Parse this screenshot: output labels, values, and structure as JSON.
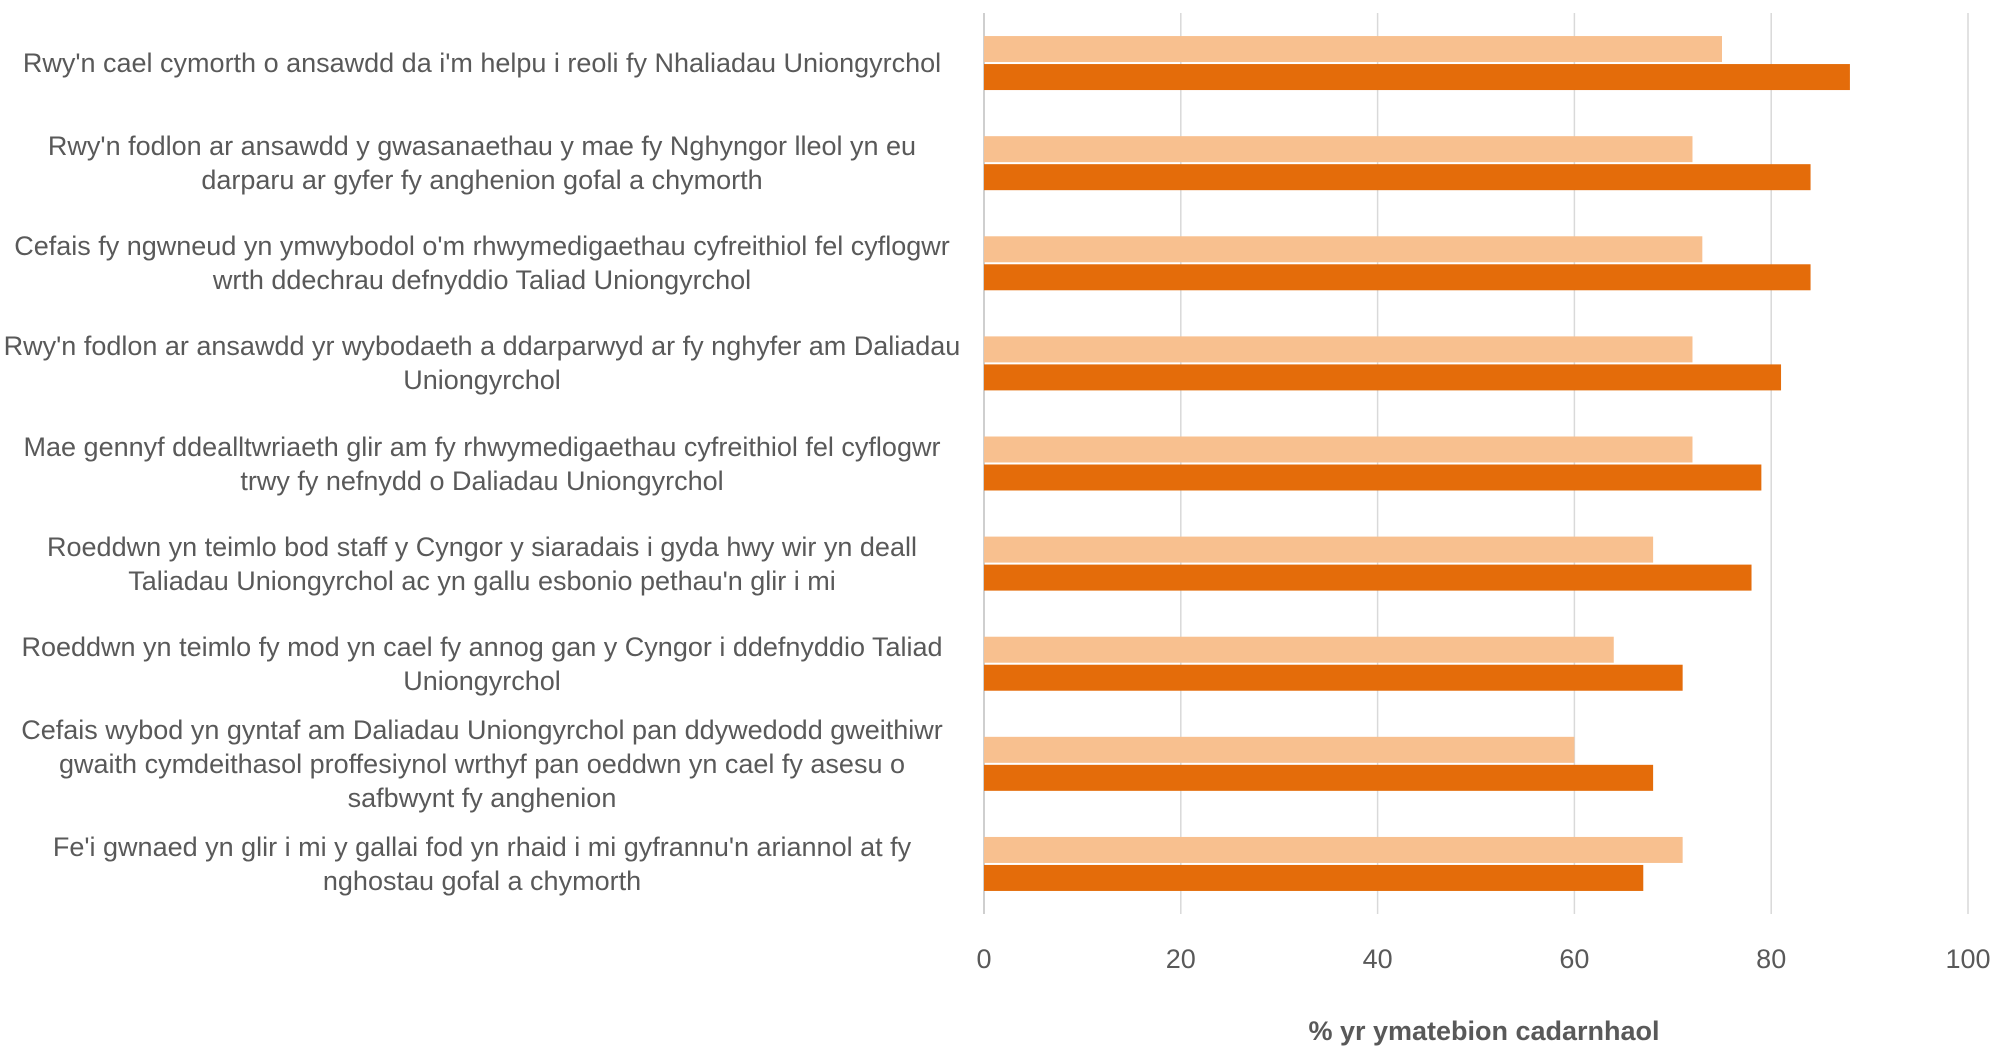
{
  "chart_data": {
    "type": "bar",
    "orientation": "horizontal",
    "categories": [
      "Rwy'n cael cymorth o ansawdd da i'm helpu i reoli fy Nhaliadau Uniongyrchol",
      "Rwy'n fodlon ar ansawdd y gwasanaethau y mae fy Nghyngor lleol yn eu darparu ar gyfer fy anghenion gofal a chymorth",
      "Cefais fy ngwneud yn ymwybodol o'm rhwymedigaethau cyfreithiol fel cyflogwr wrth ddechrau defnyddio Taliad Uniongyrchol",
      "Rwy'n fodlon ar ansawdd yr wybodaeth a ddarparwyd ar fy nghyfer am Daliadau Uniongyrchol",
      "Mae gennyf ddealltwriaeth glir am fy rhwymedigaethau cyfreithiol fel cyflogwr trwy fy nefnydd o Daliadau Uniongyrchol",
      "Roeddwn yn teimlo bod staff y Cyngor y siaradais i gyda hwy wir yn deall Taliadau Uniongyrchol ac yn gallu esbonio pethau'n glir i mi",
      "Roeddwn yn teimlo fy mod yn cael fy annog gan y Cyngor i ddefnyddio Taliad Uniongyrchol",
      "Cefais wybod yn gyntaf am Daliadau Uniongyrchol pan ddywedodd gweithiwr gwaith cymdeithasol proffesiynol wrthyf pan oeddwn yn cael fy asesu o safbwynt fy anghenion",
      "Fe'i gwnaed yn glir i mi y gallai fod yn rhaid i mi gyfrannu'n ariannol at fy nghostau gofal a chymorth"
    ],
    "series": [
      {
        "color": "#F8C08F",
        "values": [
          75,
          72,
          73,
          72,
          72,
          68,
          64,
          60,
          71
        ]
      },
      {
        "color": "#E46C0A",
        "values": [
          88,
          84,
          84,
          81,
          79,
          78,
          71,
          68,
          67
        ]
      }
    ],
    "xlabel": "% yr ymatebion cadarnhaol",
    "xlim": [
      0,
      100
    ],
    "xticks": [
      "0",
      "20",
      "40",
      "60",
      "80",
      "100"
    ],
    "grid": true,
    "legend": "none"
  }
}
